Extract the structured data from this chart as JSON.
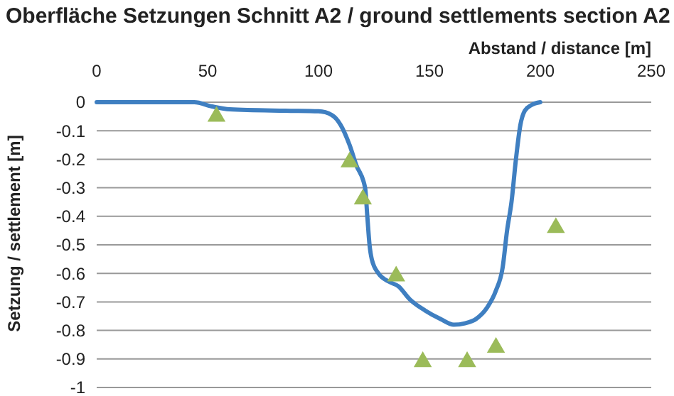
{
  "chart_data": {
    "type": "line",
    "title": "Oberfläche Setzungen Schnitt A2 / ground settlements section A2",
    "xlabel": "Abstand / distance [m]",
    "ylabel": "Setzung / settlement [m]",
    "xlim": [
      0,
      250
    ],
    "xticks": [
      0,
      50,
      100,
      150,
      200,
      250
    ],
    "ylim": [
      -1,
      0
    ],
    "yticks": [
      0,
      -0.1,
      -0.2,
      -0.3,
      -0.4,
      -0.5,
      -0.6,
      -0.7,
      -0.8,
      -0.9,
      -1
    ],
    "grid": "y",
    "series": [
      {
        "color": "#3f7fc1",
        "marker": "none",
        "line_style": "solid",
        "x": [
          0,
          44,
          52,
          60,
          85,
          100,
          106,
          110,
          114,
          117,
          121,
          122,
          123,
          124,
          127,
          132,
          136,
          141,
          148,
          155,
          161,
          166,
          171,
          176,
          180,
          183,
          185,
          187,
          189,
          191,
          193,
          196,
          200
        ],
        "values": [
          0,
          0,
          -0.015,
          -0.025,
          -0.03,
          -0.032,
          -0.045,
          -0.08,
          -0.15,
          -0.22,
          -0.3,
          -0.4,
          -0.5,
          -0.55,
          -0.6,
          -0.63,
          -0.645,
          -0.69,
          -0.73,
          -0.76,
          -0.78,
          -0.775,
          -0.76,
          -0.72,
          -0.66,
          -0.58,
          -0.45,
          -0.35,
          -0.2,
          -0.08,
          -0.03,
          -0.01,
          0
        ]
      },
      {
        "type": "scatter",
        "color": "#9bbb59",
        "marker": "triangle",
        "x": [
          54,
          114,
          120,
          135,
          147,
          167,
          180,
          207
        ],
        "values": [
          -0.04,
          -0.2,
          -0.33,
          -0.6,
          -0.9,
          -0.9,
          -0.85,
          -0.43
        ]
      }
    ]
  }
}
